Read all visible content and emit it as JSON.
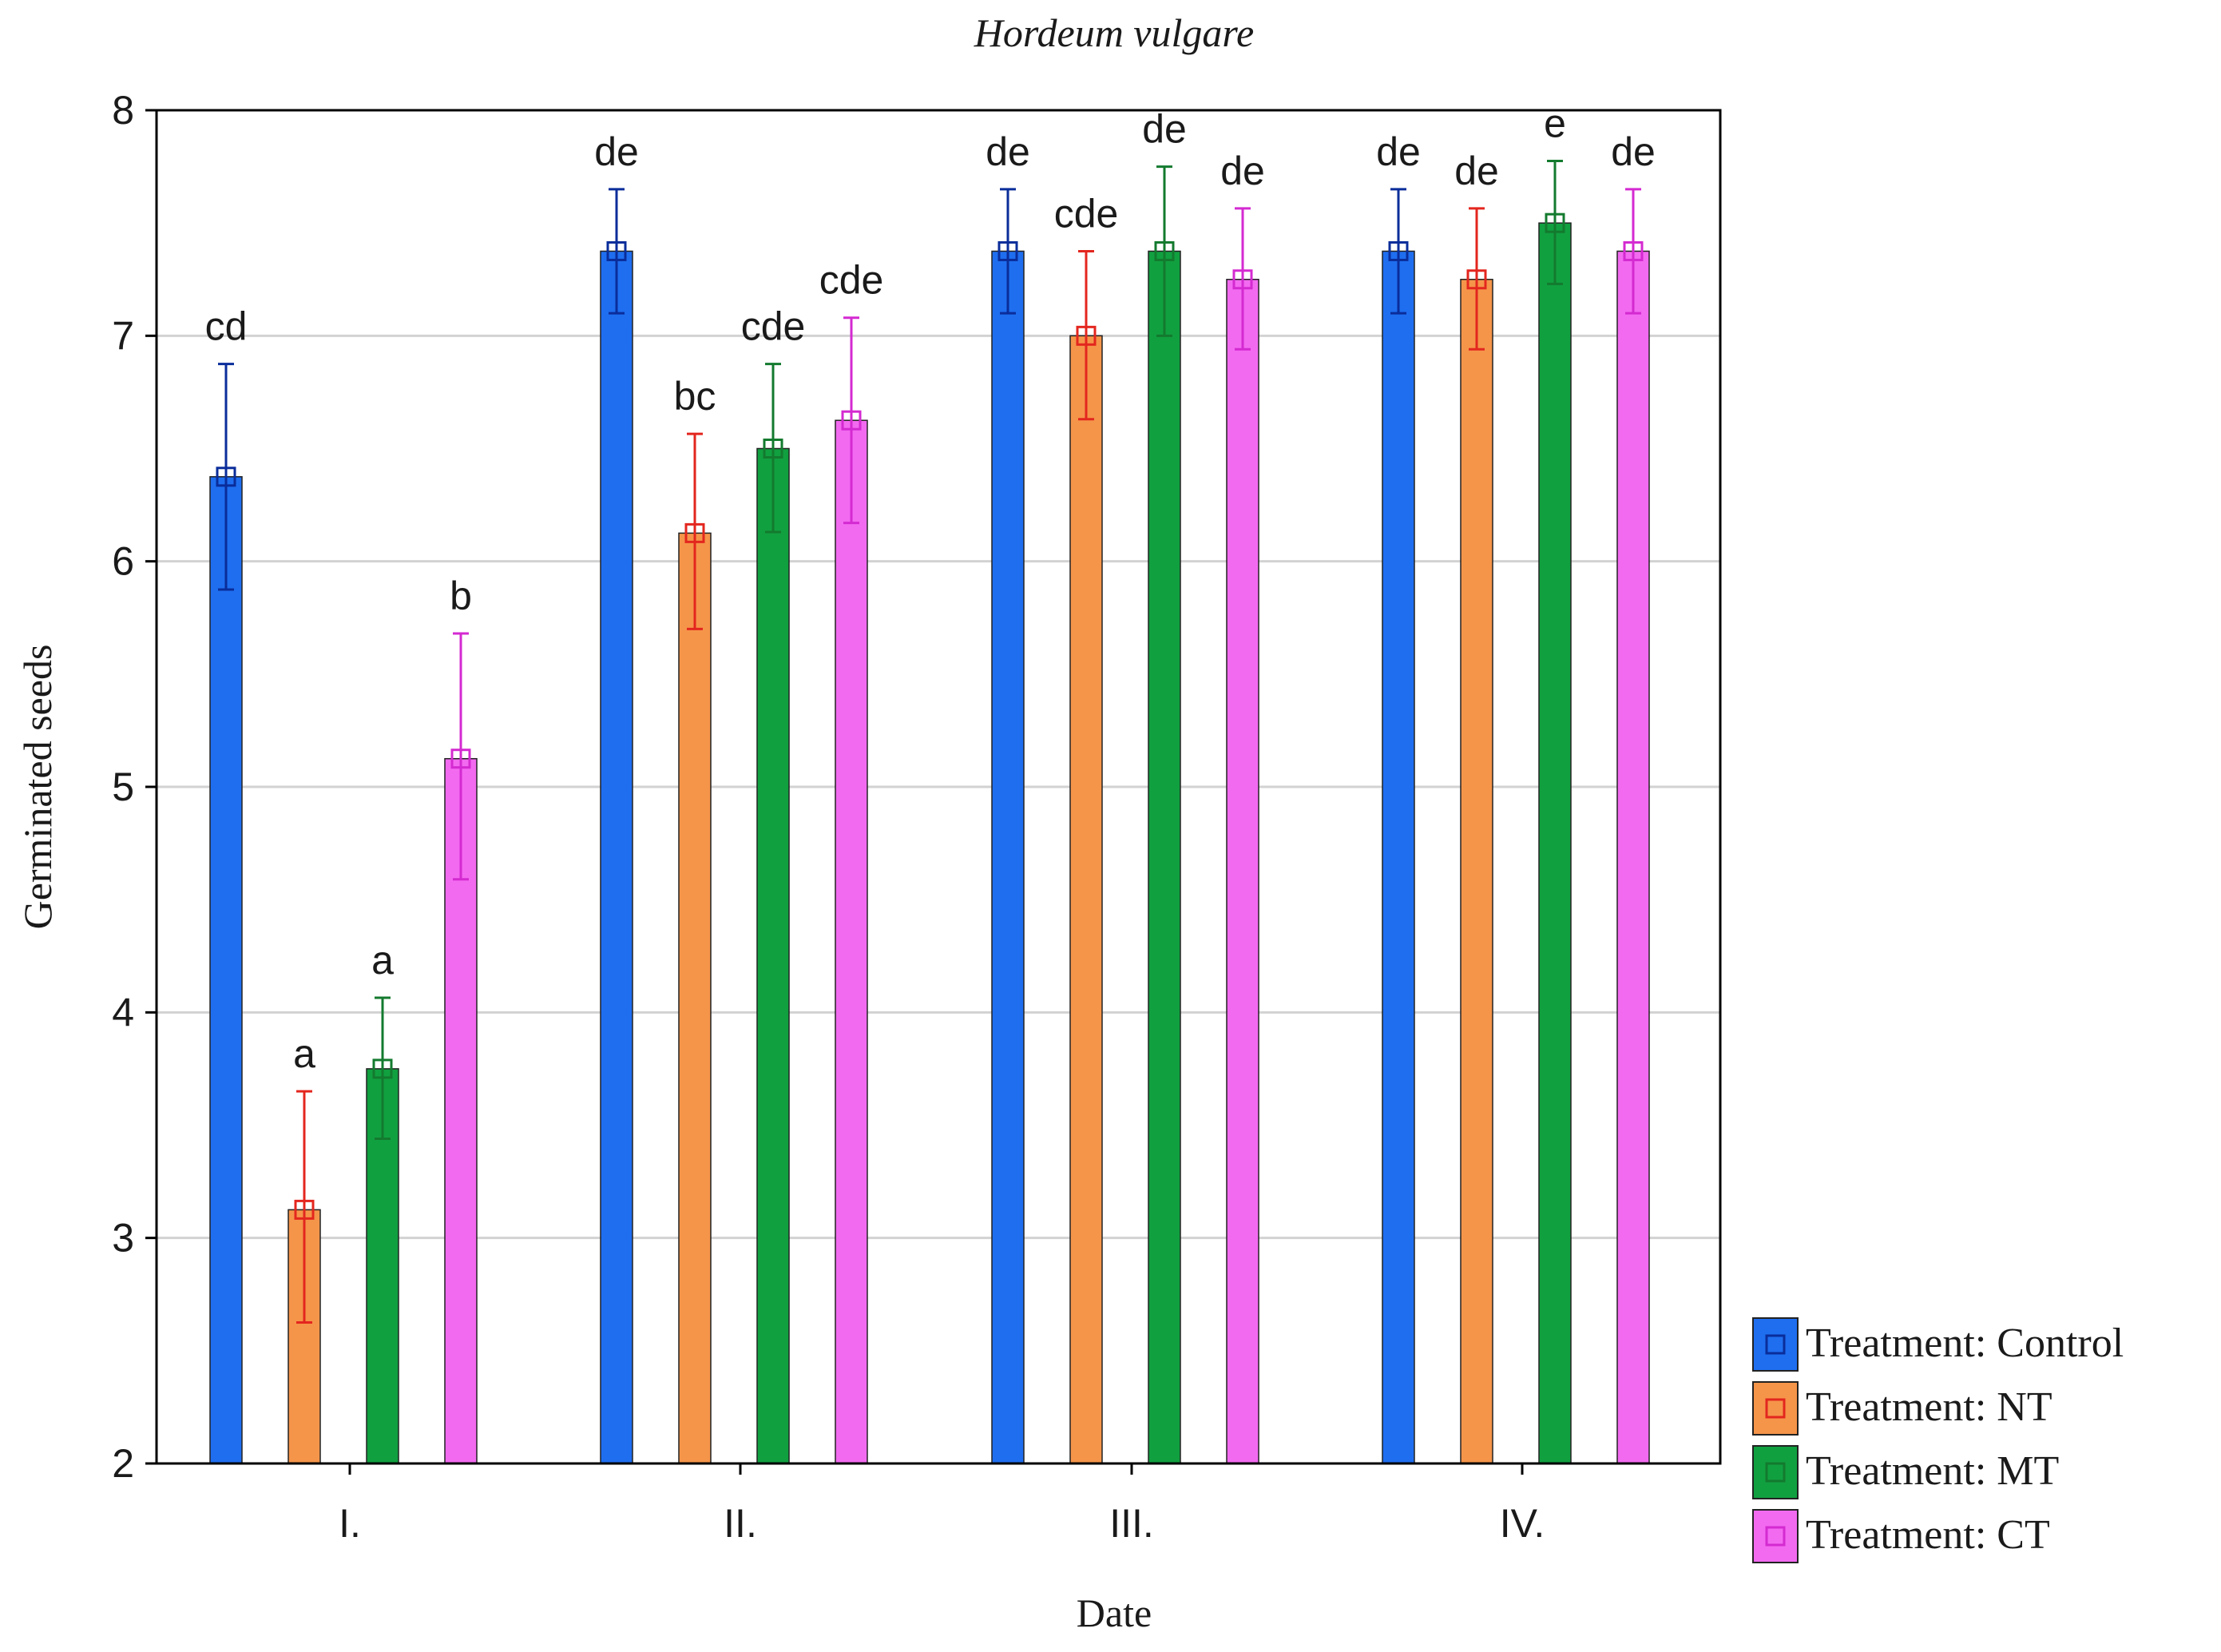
{
  "chart_data": {
    "type": "bar",
    "title": "Hordeum vulgare",
    "xlabel": "Date",
    "ylabel": "Germinated seeds",
    "ylim": [
      2,
      8
    ],
    "yticks": [
      2,
      3,
      4,
      5,
      6,
      7,
      8
    ],
    "grid": true,
    "legend_position": "right-bottom",
    "categories": [
      "I.",
      "II.",
      "III.",
      "IV."
    ],
    "series": [
      {
        "name": "Treatment: Control",
        "color": "#1f6ef0",
        "err_color": "#0a2d9a",
        "values": [
          6.375,
          7.375,
          7.375,
          7.375
        ],
        "err_low": [
          5.875,
          7.1,
          7.1,
          7.1
        ],
        "err_high": [
          6.875,
          7.65,
          7.65,
          7.65
        ],
        "letters": [
          "cd",
          "de",
          "de",
          "de"
        ]
      },
      {
        "name": "Treatment: NT",
        "color": "#f5954a",
        "err_color": "#e3261e",
        "values": [
          3.125,
          6.125,
          7.0,
          7.25
        ],
        "err_low": [
          2.625,
          5.7,
          6.63,
          6.94
        ],
        "err_high": [
          3.65,
          6.565,
          7.375,
          7.565
        ],
        "letters": [
          "a",
          "bc",
          "cde",
          "de"
        ]
      },
      {
        "name": "Treatment: MT",
        "color": "#11a040",
        "err_color": "#137a2e",
        "values": [
          3.75,
          6.5,
          7.375,
          7.5
        ],
        "err_low": [
          3.44,
          6.13,
          7.0,
          7.23
        ],
        "err_high": [
          4.065,
          6.875,
          7.75,
          7.775
        ],
        "letters": [
          "a",
          "cde",
          "de",
          "e"
        ]
      },
      {
        "name": "Treatment: CT",
        "color": "#f26af0",
        "err_color": "#d42ad1",
        "values": [
          5.125,
          6.625,
          7.25,
          7.375
        ],
        "err_low": [
          4.59,
          6.17,
          6.94,
          7.1
        ],
        "err_high": [
          5.68,
          7.08,
          7.565,
          7.65
        ],
        "letters": [
          "b",
          "cde",
          "de",
          "de"
        ]
      }
    ]
  }
}
